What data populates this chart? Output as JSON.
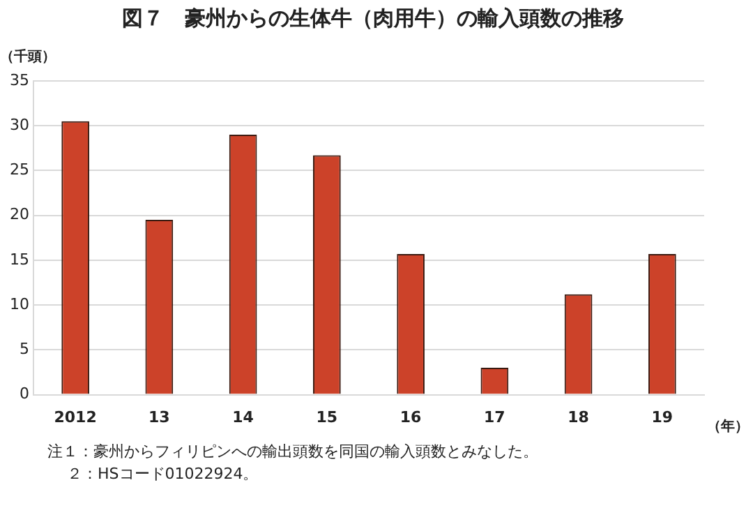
{
  "chart_data": {
    "type": "bar",
    "title": "図７　豪州からの生体牛（肉用牛）の輸入頭数の推移",
    "ylabel": "（千頭）",
    "xlabel": "（年）",
    "categories": [
      "2012",
      "13",
      "14",
      "15",
      "16",
      "17",
      "18",
      "19"
    ],
    "values": [
      30.5,
      19.5,
      29.0,
      26.7,
      15.7,
      3.0,
      11.2,
      15.7
    ],
    "color": "#cc4229",
    "ylim": [
      0,
      35
    ],
    "yticks": [
      0,
      5,
      10,
      15,
      20,
      25,
      30,
      35
    ],
    "grid": "y",
    "legend": false,
    "annotations": [
      "注１：豪州からフィリピンへの輸出頭数を同国の輸入頭数とみなした。",
      "２：HSコード01022924。"
    ]
  }
}
